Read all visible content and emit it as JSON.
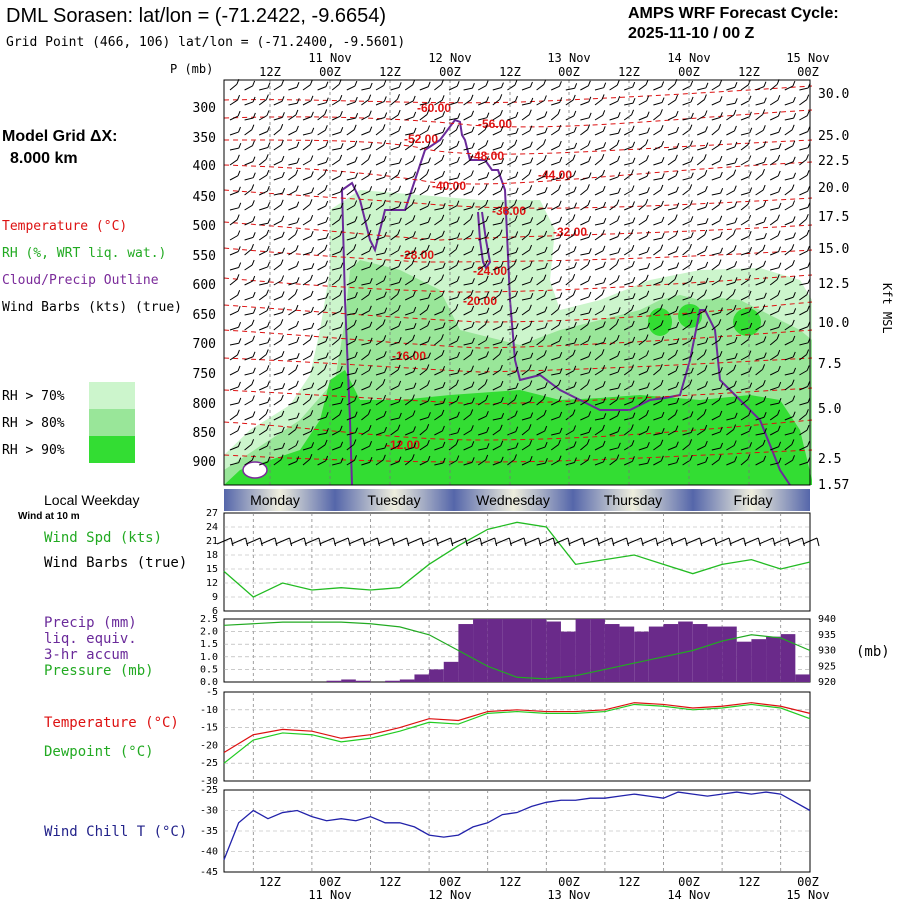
{
  "header": {
    "title": "DML Sorasen:  lat/lon = (-71.2422, -9.6654)",
    "subtitle": "Grid Point (466, 106) lat/lon = (-71.2400, -9.5601)",
    "forecast_cycle_label": "AMPS WRF Forecast Cycle:",
    "forecast_cycle_value": "2025-11-10 / 00  Z"
  },
  "left_labels": {
    "model_grid": "Model Grid ΔX:",
    "grid_spacing": "8.000 km",
    "temperature": "Temperature (°C)",
    "rh": "RH (%, WRT liq. wat.)",
    "cloud": "Cloud/Precip Outline",
    "wind": "Wind Barbs (kts) (true)",
    "rh_legend": [
      {
        "label": "RH > 70%",
        "color": "#ccf5cc"
      },
      {
        "label": "RH > 80%",
        "color": "#99e699"
      },
      {
        "label": "RH > 90%",
        "color": "#33dd33"
      }
    ]
  },
  "time_axis": {
    "top_dates": [
      "11 Nov",
      "12 Nov",
      "13 Nov",
      "14 Nov",
      "15 Nov"
    ],
    "bottom_dates": [
      "11 Nov",
      "12 Nov",
      "13 Nov",
      "14 Nov",
      "15 Nov"
    ],
    "hour_labels": [
      "12Z",
      "00Z",
      "12Z",
      "00Z",
      "12Z",
      "00Z",
      "12Z",
      "00Z",
      "12Z",
      "00Z"
    ],
    "weekday_title": "Local Weekday",
    "weekdays": [
      "Monday",
      "Tuesday",
      "Wednesday",
      "Thursday",
      "Friday"
    ]
  },
  "chart_data": [
    {
      "type": "contour",
      "name": "time-height cross section",
      "y_left_title": "P (mb)",
      "y_left_ticks": [
        300,
        350,
        400,
        450,
        500,
        550,
        600,
        650,
        700,
        750,
        800,
        850,
        900
      ],
      "y_right_title": "Kft MSL",
      "y_right_ticks": [
        "30.0",
        "25.0",
        "22.5",
        "20.0",
        "17.5",
        "15.0",
        "12.5",
        "10.0",
        "7.5",
        "5.0",
        "2.5",
        "1.57"
      ],
      "temperature_contour_labels": [
        "-60.00",
        "-56.00",
        "-52.00",
        "-48.00",
        "-44.00",
        "-40.00",
        "-36.00",
        "-32.00",
        "-28.00",
        "-24.00",
        "-20.00",
        "-16.00",
        "-12.00"
      ]
    },
    {
      "type": "line",
      "name": "wind speed",
      "ylabel": "Wind Spd (kts)",
      "label2": "Wind Barbs (true)",
      "label_wind10": "Wind at 10 m",
      "ylim": [
        6,
        27
      ],
      "y_ticks": [
        6,
        9,
        12,
        15,
        18,
        21,
        24,
        27
      ],
      "hours": [
        0,
        6,
        12,
        18,
        24,
        30,
        36,
        42,
        48,
        54,
        60,
        66,
        72,
        78,
        84,
        90,
        96,
        102,
        108,
        114,
        120
      ],
      "values": [
        14.5,
        9,
        12,
        10.5,
        11,
        10.5,
        11,
        16,
        20,
        23.5,
        25,
        24,
        16,
        17,
        18,
        16,
        14,
        16,
        17,
        15,
        16.5
      ],
      "color": "#22bb22"
    },
    {
      "type": "bar",
      "name": "precipitation and pressure",
      "ylabel": "Precip (mm)",
      "label_lines": [
        "liq. equiv.",
        "3-hr accum"
      ],
      "ylabel2": "Pressure (mb)",
      "right_unit": "(mb)",
      "ylim": [
        0,
        2.5
      ],
      "y_ticks": [
        "0.0",
        "0.5",
        "1.0",
        "1.5",
        "2.0",
        "2.5"
      ],
      "y2lim": [
        920,
        940
      ],
      "y2_ticks": [
        920,
        925,
        930,
        935,
        940
      ],
      "hours": [
        0,
        3,
        6,
        9,
        12,
        15,
        18,
        21,
        24,
        27,
        30,
        33,
        36,
        39,
        42,
        45,
        48,
        51,
        54,
        57,
        60,
        63,
        66,
        69,
        72,
        75,
        78,
        81,
        84,
        87,
        90,
        93,
        96,
        99,
        102,
        105,
        108,
        111,
        114,
        117
      ],
      "precip": [
        0,
        0,
        0,
        0,
        0,
        0,
        0,
        0.05,
        0.1,
        0.05,
        0,
        0.05,
        0.1,
        0.3,
        0.5,
        0.8,
        2.3,
        2.6,
        2.5,
        2.5,
        2.6,
        2.5,
        2.4,
        2.0,
        2.5,
        2.5,
        2.3,
        2.2,
        2.0,
        2.2,
        2.3,
        2.4,
        2.3,
        2.2,
        2.2,
        1.6,
        1.7,
        1.8,
        1.9,
        0.3
      ],
      "precip_color": "#6a2a8a",
      "pressure_hours": [
        0,
        6,
        12,
        18,
        24,
        30,
        36,
        42,
        48,
        54,
        60,
        66,
        72,
        78,
        84,
        90,
        96,
        102,
        108,
        114,
        120
      ],
      "pressure": [
        938,
        938.5,
        939,
        939,
        939,
        938.5,
        937.5,
        935,
        930,
        925,
        921.5,
        921,
        922,
        924,
        926,
        928,
        930,
        933,
        935,
        934,
        930
      ],
      "pressure_color": "#22aa22"
    },
    {
      "type": "line",
      "name": "temperature and dewpoint",
      "ylim": [
        -30,
        -5
      ],
      "y_ticks": [
        -5,
        -10,
        -15,
        -20,
        -25,
        -30
      ],
      "hours": [
        0,
        6,
        12,
        18,
        24,
        30,
        36,
        42,
        48,
        54,
        60,
        66,
        72,
        78,
        84,
        90,
        96,
        102,
        108,
        114,
        120
      ],
      "series": [
        {
          "name": "Temperature (°C)",
          "color": "#dd1111",
          "values": [
            -22,
            -17,
            -15.5,
            -16,
            -18,
            -17,
            -15,
            -12.5,
            -13,
            -10.5,
            -10,
            -10.5,
            -10.5,
            -10,
            -8,
            -8.5,
            -9.5,
            -9,
            -8,
            -9,
            -11
          ]
        },
        {
          "name": "Dewpoint (°C)",
          "color": "#22cc22",
          "values": [
            -25,
            -18.5,
            -16.5,
            -17,
            -19,
            -18,
            -16,
            -13.5,
            -14,
            -11,
            -10.5,
            -11,
            -11,
            -10.5,
            -8.5,
            -9,
            -10,
            -9.5,
            -8.5,
            -9.5,
            -12.5
          ]
        }
      ]
    },
    {
      "type": "line",
      "name": "wind chill",
      "ylabel": "Wind Chill T (°C)",
      "ylim": [
        -45,
        -25
      ],
      "y_ticks": [
        -25,
        -30,
        -35,
        -40,
        -45
      ],
      "hours": [
        0,
        3,
        6,
        9,
        12,
        15,
        18,
        21,
        24,
        27,
        30,
        33,
        36,
        39,
        42,
        45,
        48,
        51,
        54,
        57,
        60,
        63,
        66,
        69,
        72,
        75,
        78,
        81,
        84,
        87,
        90,
        93,
        96,
        99,
        102,
        105,
        108,
        111,
        114,
        117,
        120
      ],
      "values": [
        -42,
        -33,
        -30,
        -32,
        -30.5,
        -30,
        -31.5,
        -32.5,
        -32,
        -32.5,
        -31.5,
        -33,
        -33,
        -34,
        -36,
        -36.5,
        -36,
        -34,
        -33,
        -31,
        -30.5,
        -29,
        -28,
        -27.5,
        -27.5,
        -27,
        -27,
        -26.5,
        -26,
        -26.5,
        -27,
        -25.5,
        -26,
        -26.5,
        -26,
        -25.5,
        -26,
        -25.5,
        -26,
        -28,
        -30
      ],
      "color": "#2222aa"
    }
  ]
}
